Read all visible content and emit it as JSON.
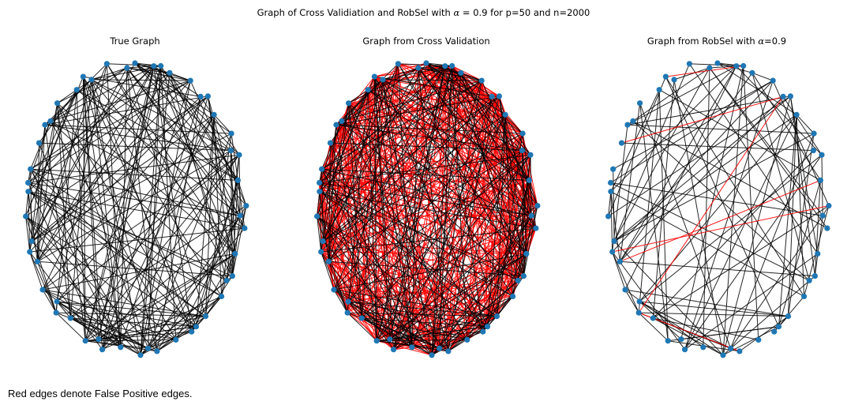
{
  "figure": {
    "suptitle_prefix": "Graph of Cross Validiation and RobSel with ",
    "suptitle_alpha": "α",
    "suptitle_suffix": " = 0.9 for p=50 and n=2000"
  },
  "panels": [
    {
      "title": "True Graph"
    },
    {
      "title": "Graph from Cross Validation"
    },
    {
      "title_prefix": "Graph from RobSel with ",
      "title_alpha": "α",
      "title_suffix": "=0.9"
    }
  ],
  "caption": "Red edges denote False Positive edges.",
  "colors": {
    "node": "#1f77b4",
    "true_edge": "#000000",
    "false_positive_edge": "#ff0000"
  },
  "graph": {
    "num_nodes": 50,
    "layout": "circular",
    "panel_edge_styles": [
      "true",
      "true+false_positive",
      "selected+false_positive"
    ]
  }
}
